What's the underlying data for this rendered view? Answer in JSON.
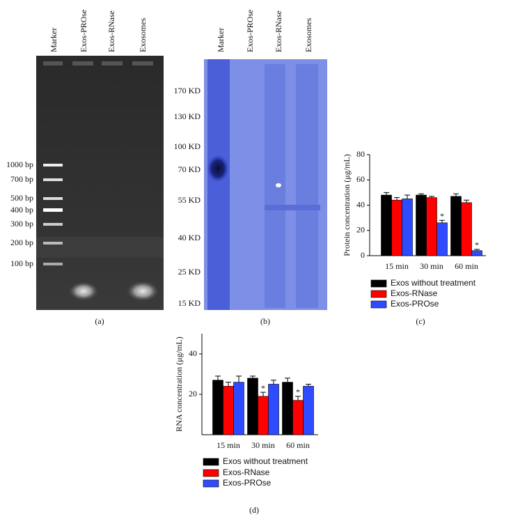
{
  "panel_labels": [
    "(a)",
    "(b)",
    "(c)",
    "(d)"
  ],
  "gel_a": {
    "lanes": [
      "Marker",
      "Exos-PROse",
      "Exos-RNase",
      "Exosomes"
    ],
    "sizes": [
      "1000 bp",
      "700 bp",
      "500 bp",
      "400 bp",
      "300 bp",
      "200 bp",
      "100 bp"
    ]
  },
  "gel_b": {
    "lanes": [
      "Marker",
      "Exos-PROse",
      "Exos-RNase",
      "Exosomes"
    ],
    "sizes": [
      "170 KD",
      "130 KD",
      "100 KD",
      "70 KD",
      "55 KD",
      "40 KD",
      "25 KD",
      "15 KD"
    ]
  },
  "chart_data": [
    {
      "type": "bar",
      "y_label": "Protein concentration (μg/mL)",
      "categories": [
        "15 min",
        "30 min",
        "60 min"
      ],
      "ylim": [
        0,
        80
      ],
      "yticks": [
        0,
        20,
        40,
        60,
        80
      ],
      "series": [
        {
          "name": "Exos without treatment",
          "color": "#000000",
          "values": [
            48,
            48,
            47
          ],
          "errors": [
            2,
            1,
            2
          ]
        },
        {
          "name": "Exos-RNase",
          "color": "#ff0000",
          "values": [
            44,
            46,
            42
          ],
          "errors": [
            2,
            1,
            2
          ]
        },
        {
          "name": "Exos-PROse",
          "color": "#2e4bff",
          "values": [
            45,
            26,
            4
          ],
          "errors": [
            3,
            2,
            1
          ]
        }
      ],
      "annotations": [
        {
          "text": "*",
          "x": "30 min",
          "series": "Exos-PROse"
        },
        {
          "text": "*",
          "x": "60 min",
          "series": "Exos-PROse"
        }
      ]
    },
    {
      "type": "bar",
      "y_label": "RNA concentration (μg/mL)",
      "categories": [
        "15 min",
        "30 min",
        "60 min"
      ],
      "ylim": [
        0,
        50
      ],
      "yticks": [
        20,
        40
      ],
      "series": [
        {
          "name": "Exos without treatment",
          "color": "#000000",
          "values": [
            27,
            28,
            26
          ],
          "errors": [
            2,
            1,
            2
          ]
        },
        {
          "name": "Exos-RNase",
          "color": "#ff0000",
          "values": [
            24,
            19,
            17
          ],
          "errors": [
            2,
            2,
            2
          ]
        },
        {
          "name": "Exos-PROse",
          "color": "#2e4bff",
          "values": [
            26,
            25,
            24
          ],
          "errors": [
            3,
            2,
            1
          ]
        }
      ],
      "annotations": [
        {
          "text": "*",
          "x": "30 min",
          "series": "Exos-RNase"
        },
        {
          "text": "*",
          "x": "60 min",
          "series": "Exos-RNase"
        }
      ]
    }
  ]
}
